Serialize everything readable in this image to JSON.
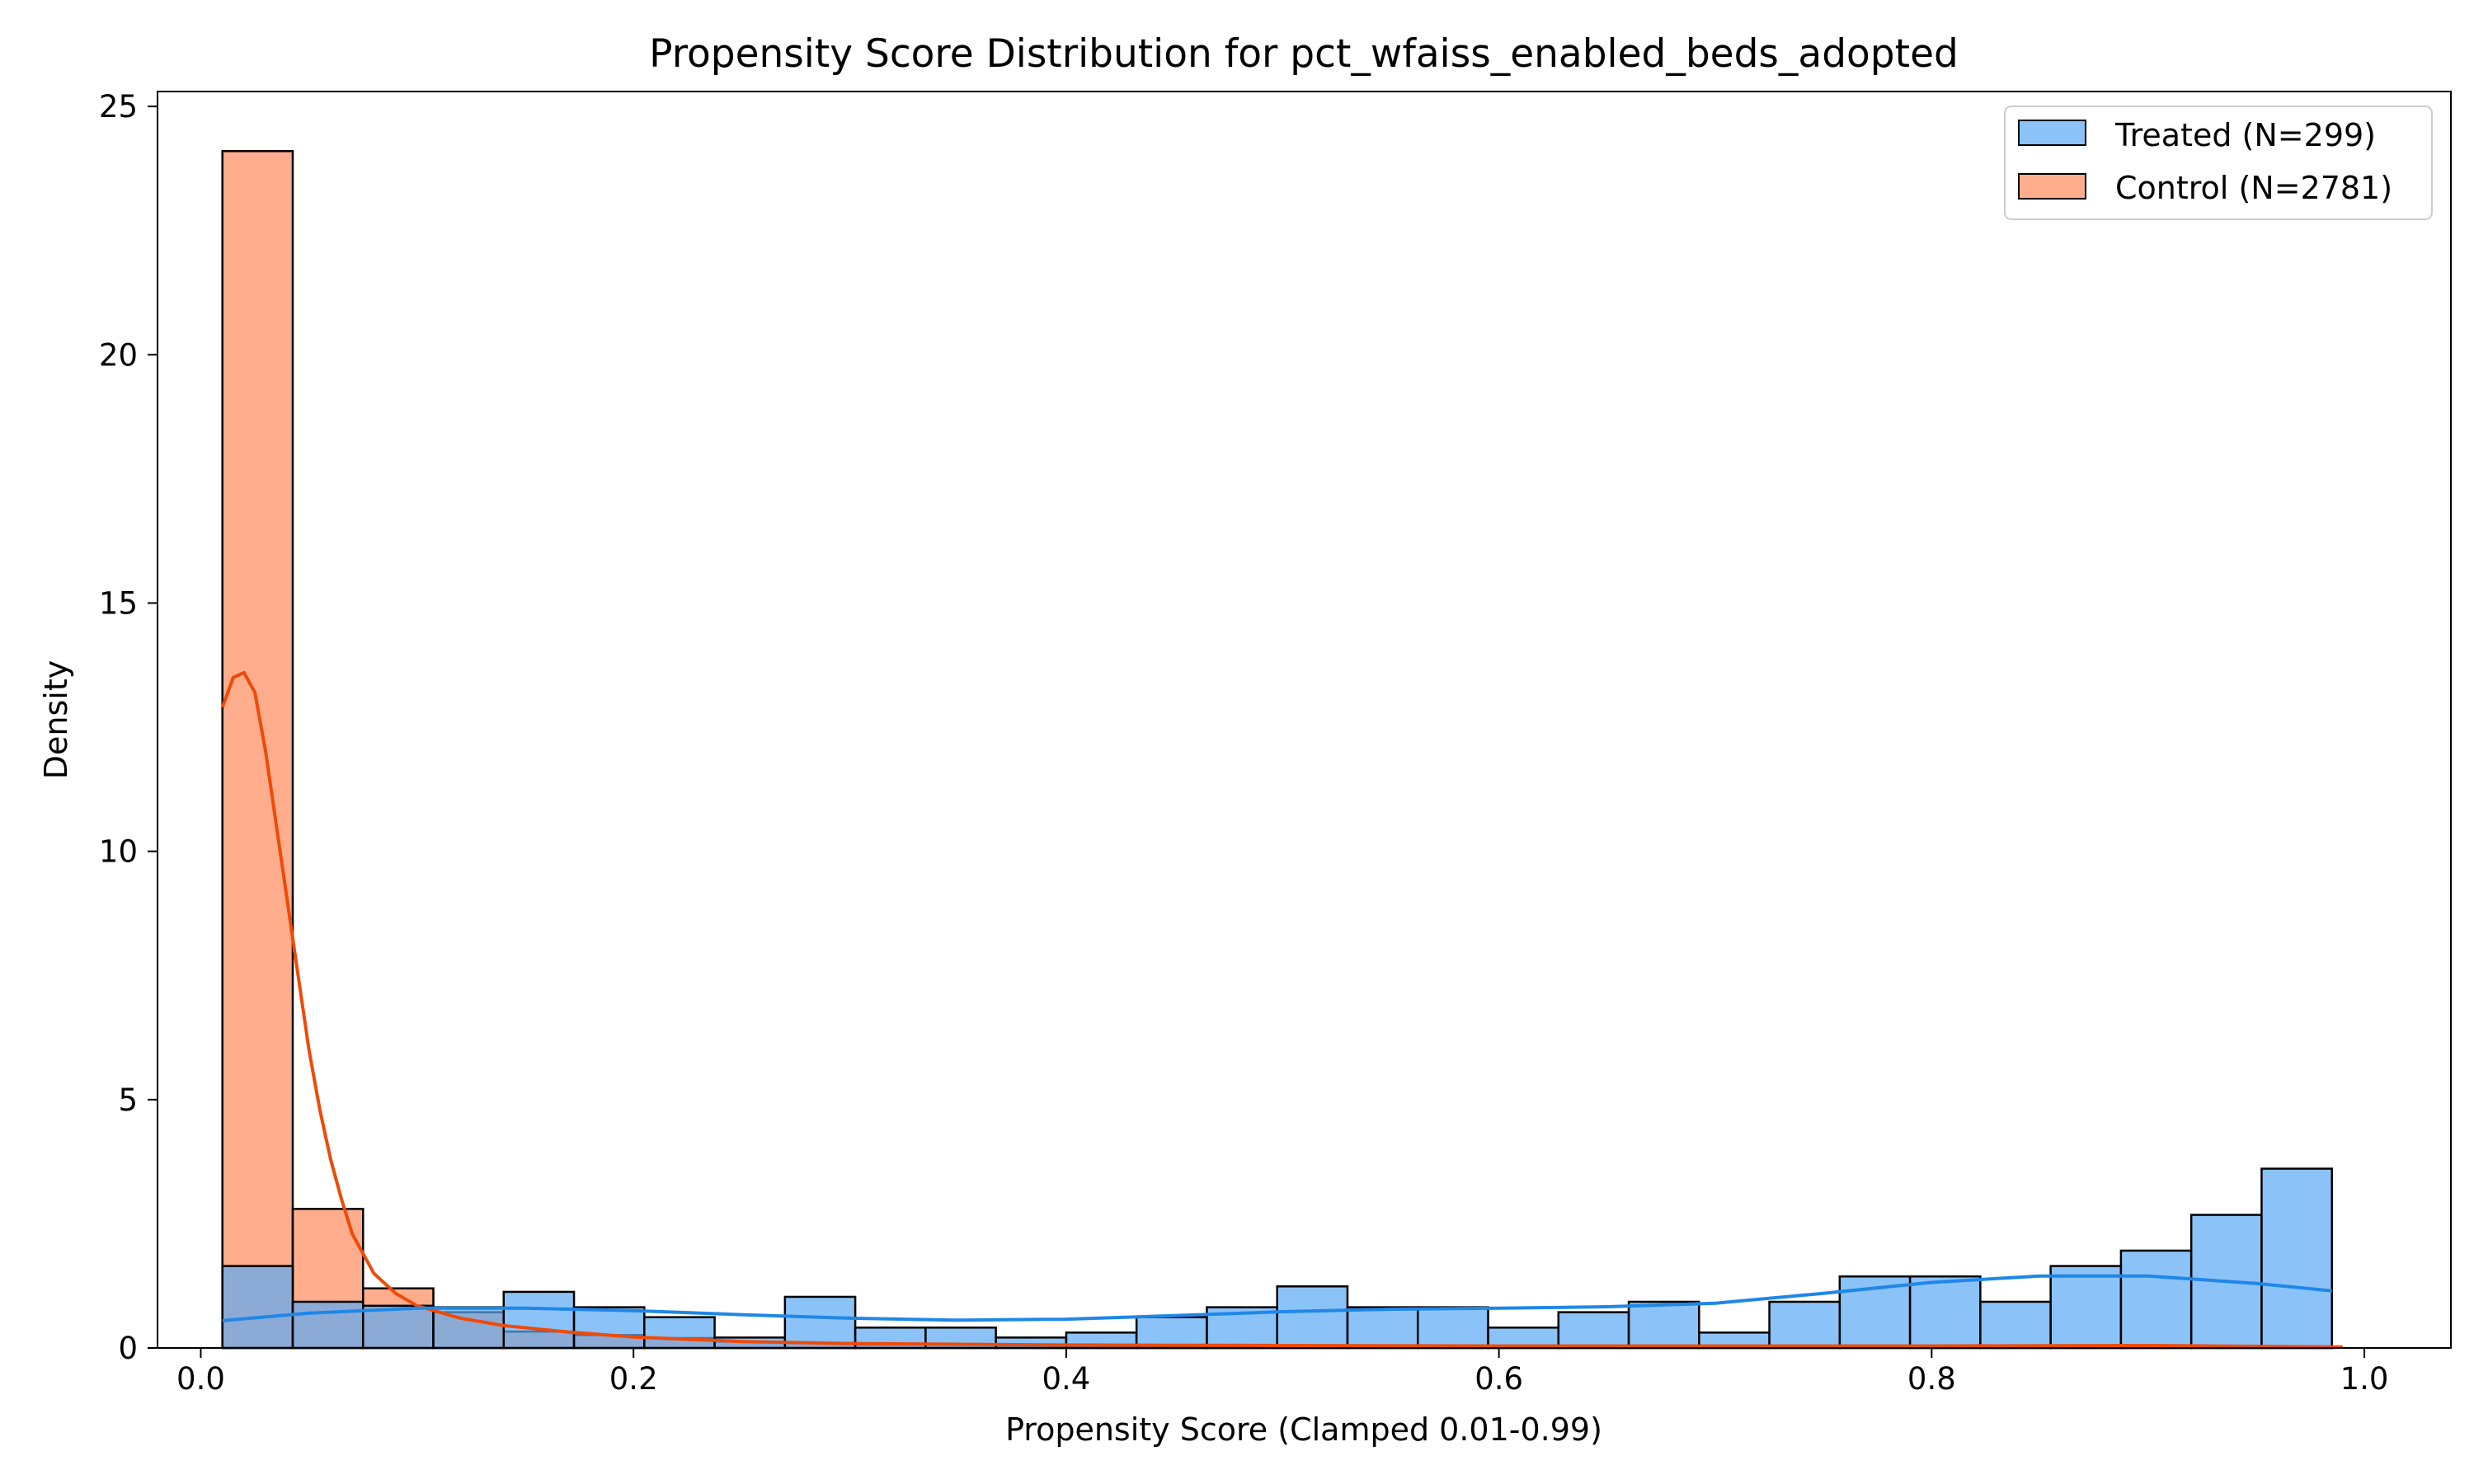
{
  "chart_data": {
    "type": "bar",
    "title": "Propensity Score Distribution for pct_wfaiss_enabled_beds_adopted",
    "xlabel": "Propensity Score (Clamped 0.01-0.99)",
    "ylabel": "Density",
    "xlim": [
      -0.02,
      1.04
    ],
    "ylim": [
      0,
      25.3
    ],
    "xticks": [
      0.0,
      0.2,
      0.4,
      0.6,
      0.8,
      1.0
    ],
    "xtick_labels": [
      "0.0",
      "0.2",
      "0.4",
      "0.6",
      "0.8",
      "1.0"
    ],
    "yticks": [
      0,
      5,
      10,
      15,
      20,
      25
    ],
    "ytick_labels": [
      "0",
      "5",
      "10",
      "15",
      "20",
      "25"
    ],
    "grid": false,
    "legend_position": "top-right",
    "bin_edges": [
      0.01,
      0.0425,
      0.075,
      0.1075,
      0.14,
      0.1725,
      0.205,
      0.2375,
      0.27,
      0.3025,
      0.335,
      0.3675,
      0.4,
      0.4325,
      0.465,
      0.4975,
      0.53,
      0.5625,
      0.595,
      0.6275,
      0.66,
      0.6925,
      0.725,
      0.7575,
      0.79,
      0.8225,
      0.855,
      0.8875,
      0.92,
      0.9525,
      0.985
    ],
    "series": [
      {
        "name": "Treated (N=299)",
        "color": "#5aa9f5",
        "edge_color": "#000000",
        "kde_color": "#1f87e8",
        "values": [
          1.65,
          0.93,
          0.85,
          0.82,
          1.13,
          0.82,
          0.62,
          0.21,
          1.03,
          0.41,
          0.41,
          0.21,
          0.31,
          0.62,
          0.82,
          1.24,
          0.82,
          0.82,
          0.41,
          0.72,
          0.93,
          0.31,
          0.93,
          1.44,
          1.44,
          0.93,
          1.65,
          1.96,
          2.68,
          3.61
        ],
        "kde": {
          "x": [
            0.01,
            0.05,
            0.1,
            0.15,
            0.2,
            0.25,
            0.3,
            0.35,
            0.4,
            0.45,
            0.5,
            0.55,
            0.6,
            0.65,
            0.7,
            0.75,
            0.8,
            0.85,
            0.9,
            0.95,
            0.985
          ],
          "y": [
            0.55,
            0.7,
            0.8,
            0.8,
            0.75,
            0.67,
            0.6,
            0.56,
            0.58,
            0.65,
            0.73,
            0.78,
            0.8,
            0.83,
            0.9,
            1.1,
            1.32,
            1.45,
            1.45,
            1.3,
            1.15
          ]
        }
      },
      {
        "name": "Control (N=2781)",
        "color": "#ff8a5c",
        "edge_color": "#000000",
        "kde_color": "#f04a08",
        "values": [
          24.1,
          2.8,
          1.2,
          0.72,
          0.33,
          0.26,
          0.2,
          0.13,
          0.1,
          0.07,
          0.07,
          0.05,
          0.05,
          0.04,
          0.04,
          0.03,
          0.03,
          0.02,
          0.02,
          0.02,
          0.02,
          0.02,
          0.02,
          0.02,
          0.02,
          0.02,
          0.02,
          0.02,
          0.02,
          0.02
        ],
        "kde": {
          "x": [
            0.01,
            0.015,
            0.02,
            0.025,
            0.03,
            0.035,
            0.04,
            0.045,
            0.05,
            0.055,
            0.06,
            0.065,
            0.07,
            0.08,
            0.09,
            0.1,
            0.12,
            0.14,
            0.17,
            0.2,
            0.25,
            0.3,
            0.4,
            0.5,
            0.6,
            0.7,
            0.8,
            0.9,
            0.99
          ],
          "y": [
            12.9,
            13.5,
            13.6,
            13.2,
            12.0,
            10.5,
            9.0,
            7.5,
            6.0,
            4.8,
            3.8,
            3.0,
            2.3,
            1.5,
            1.1,
            0.85,
            0.6,
            0.45,
            0.32,
            0.22,
            0.13,
            0.09,
            0.06,
            0.05,
            0.04,
            0.04,
            0.04,
            0.05,
            0.02
          ]
        }
      }
    ]
  }
}
